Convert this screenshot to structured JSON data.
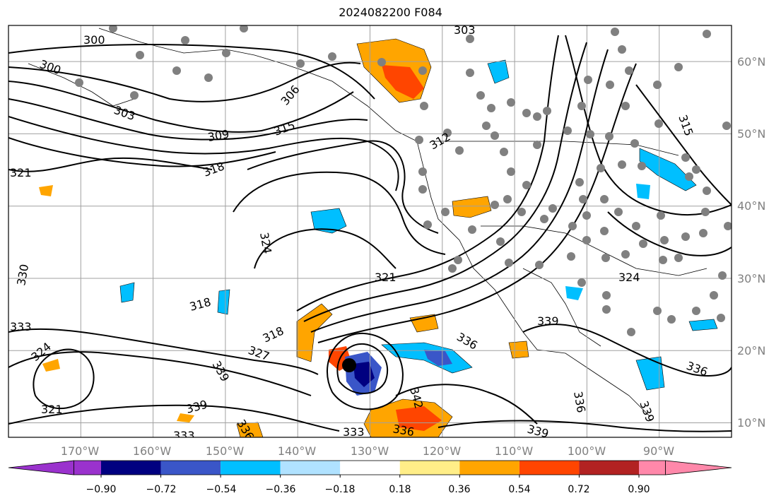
{
  "title": "2024082200 F084",
  "map": {
    "lon_range": [
      -180,
      -80
    ],
    "lat_range": [
      8,
      65
    ],
    "x_ticks": [
      "170°W",
      "160°W",
      "150°W",
      "140°W",
      "130°W",
      "120°W",
      "110°W",
      "100°W",
      "90°W"
    ],
    "y_ticks": [
      "10°N",
      "20°N",
      "30°N",
      "40°N",
      "50°N",
      "60°N"
    ],
    "grid": true,
    "tick_color": "#808080",
    "grid_color": "#a0a0a0"
  },
  "contour_labels": [
    "300",
    "303",
    "306",
    "309",
    "312",
    "315",
    "318",
    "321",
    "324",
    "327",
    "330",
    "333",
    "336",
    "339",
    "342"
  ],
  "colorbar": {
    "ticks": [
      "−0.90",
      "−0.72",
      "−0.54",
      "−0.36",
      "−0.18",
      "0.18",
      "0.36",
      "0.54",
      "0.72",
      "0.90"
    ],
    "colors": [
      "#9a32cd",
      "#000080",
      "#3a56c8",
      "#00bfff",
      "#b0e2ff",
      "#ffffff",
      "#ffee88",
      "#ffa500",
      "#ff4500",
      "#b22222",
      "#ff88aa"
    ],
    "extend": "both"
  }
}
